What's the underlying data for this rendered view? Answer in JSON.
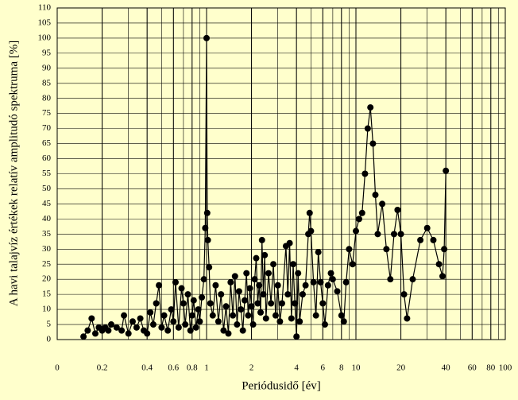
{
  "chart_data": {
    "type": "line",
    "xlabel": "Periódusidő [év]",
    "ylabel": "A havi talajvíz értékek relatív amplitudó spektruma [%]",
    "xscale": "log",
    "grid": true,
    "color": "#000000",
    "xlim": [
      0.1,
      100
    ],
    "ylim": [
      0,
      110
    ],
    "xticks": [
      {
        "value": 0.1,
        "label": "0"
      },
      0.2,
      0.4,
      0.6,
      0.8,
      1,
      2,
      4,
      6,
      8,
      10,
      20,
      40,
      60,
      80,
      100
    ],
    "yticks": [
      0,
      5,
      10,
      15,
      20,
      25,
      30,
      35,
      40,
      45,
      50,
      55,
      60,
      65,
      70,
      75,
      80,
      85,
      90,
      95,
      100,
      105,
      110
    ],
    "x": [
      0.15,
      0.16,
      0.17,
      0.18,
      0.19,
      0.2,
      0.21,
      0.22,
      0.23,
      0.25,
      0.27,
      0.28,
      0.3,
      0.32,
      0.34,
      0.36,
      0.38,
      0.4,
      0.42,
      0.44,
      0.46,
      0.48,
      0.5,
      0.52,
      0.55,
      0.58,
      0.6,
      0.62,
      0.65,
      0.68,
      0.7,
      0.72,
      0.75,
      0.78,
      0.8,
      0.82,
      0.85,
      0.88,
      0.9,
      0.93,
      0.96,
      0.98,
      1.0,
      1.01,
      1.02,
      1.04,
      1.06,
      1.1,
      1.15,
      1.2,
      1.25,
      1.3,
      1.35,
      1.4,
      1.45,
      1.5,
      1.55,
      1.6,
      1.65,
      1.7,
      1.75,
      1.8,
      1.85,
      1.9,
      1.95,
      2.0,
      2.05,
      2.1,
      2.15,
      2.2,
      2.25,
      2.3,
      2.35,
      2.4,
      2.45,
      2.5,
      2.6,
      2.7,
      2.8,
      2.9,
      3.0,
      3.1,
      3.2,
      3.4,
      3.5,
      3.6,
      3.7,
      3.8,
      3.9,
      4.0,
      4.1,
      4.2,
      4.4,
      4.6,
      4.8,
      4.9,
      5.0,
      5.2,
      5.4,
      5.6,
      5.8,
      6.0,
      6.2,
      6.5,
      6.8,
      7.0,
      7.5,
      8.0,
      8.3,
      8.6,
      9.0,
      9.5,
      10,
      10.5,
      11,
      11.5,
      12,
      12.5,
      13,
      13.5,
      14,
      15,
      16,
      17,
      18,
      19,
      20,
      21,
      22,
      24,
      27,
      30,
      33,
      36,
      38,
      39,
      40
    ],
    "values": [
      1,
      3,
      7,
      2,
      4,
      3,
      4,
      3,
      5,
      4,
      3,
      8,
      2,
      6,
      4,
      7,
      3,
      2,
      9,
      5,
      12,
      18,
      4,
      8,
      3,
      10,
      6,
      19,
      4,
      17,
      12,
      5,
      15,
      3,
      8,
      13,
      4,
      10,
      6,
      14,
      20,
      37,
      100,
      42,
      33,
      24,
      12,
      8,
      18,
      6,
      15,
      3,
      11,
      2,
      19,
      8,
      21,
      5,
      16,
      10,
      3,
      13,
      22,
      8,
      17,
      11,
      5,
      20,
      27,
      12,
      18,
      9,
      33,
      15,
      28,
      7,
      22,
      12,
      25,
      8,
      18,
      6,
      12,
      31,
      15,
      32,
      7,
      25,
      12,
      1,
      22,
      6,
      15,
      18,
      35,
      42,
      36,
      19,
      8,
      29,
      19,
      12,
      5,
      18,
      22,
      20,
      16,
      8,
      6,
      19,
      30,
      25,
      36,
      40,
      42,
      55,
      70,
      77,
      65,
      48,
      35,
      45,
      30,
      20,
      35,
      43,
      35,
      15,
      7,
      20,
      33,
      37,
      33,
      25,
      21,
      30,
      56
    ]
  }
}
